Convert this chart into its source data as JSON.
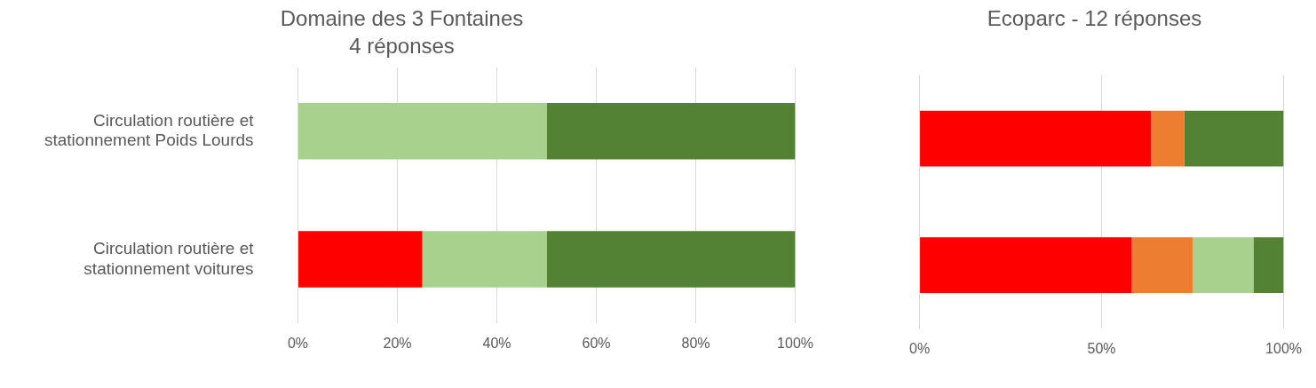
{
  "chart_data": [
    {
      "type": "bar",
      "orientation": "horizontal",
      "stacked": true,
      "title": "Domaine des 3 Fontaines",
      "subtitle": "4 réponses",
      "categories": [
        "Circulation routière et stationnement Poids Lourds",
        "Circulation routière et stationnement voitures"
      ],
      "series": [
        {
          "color": "#ff0000",
          "values": [
            0,
            25
          ]
        },
        {
          "color": "#ed7d31",
          "values": [
            0,
            0
          ]
        },
        {
          "color": "#a9d18e",
          "values": [
            50,
            25
          ]
        },
        {
          "color": "#548235",
          "values": [
            50,
            50
          ]
        }
      ],
      "xlim": [
        0,
        100
      ],
      "xticks": [
        {
          "value": 0,
          "label": "0%"
        },
        {
          "value": 20,
          "label": "20%"
        },
        {
          "value": 40,
          "label": "40%"
        },
        {
          "value": 60,
          "label": "60%"
        },
        {
          "value": 80,
          "label": "80%"
        },
        {
          "value": 100,
          "label": "100%"
        }
      ],
      "grid": "x",
      "legend": false
    },
    {
      "type": "bar",
      "orientation": "horizontal",
      "stacked": true,
      "title": "Ecoparc - 12 réponses",
      "categories": [
        null,
        null
      ],
      "series": [
        {
          "color": "#ff0000",
          "values": [
            63.6,
            58.3
          ]
        },
        {
          "color": "#ed7d31",
          "values": [
            9.1,
            16.7
          ]
        },
        {
          "color": "#a9d18e",
          "values": [
            0,
            16.7
          ]
        },
        {
          "color": "#548235",
          "values": [
            27.3,
            8.3
          ]
        }
      ],
      "xlim": [
        0,
        100
      ],
      "xticks": [
        {
          "value": 0,
          "label": "0%"
        },
        {
          "value": 50,
          "label": "50%"
        },
        {
          "value": 100,
          "label": "100%"
        }
      ],
      "grid": "x",
      "legend": false,
      "tick_labels": "x"
    }
  ]
}
